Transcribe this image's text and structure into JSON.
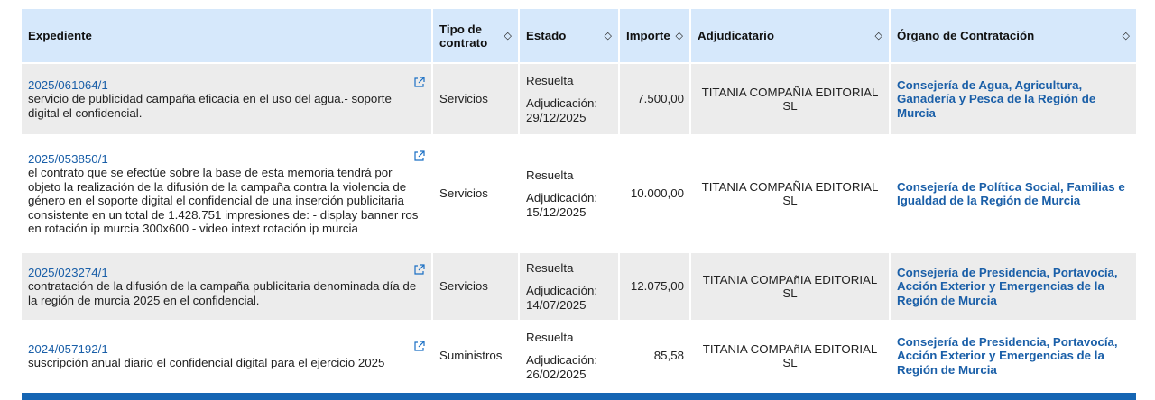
{
  "headers": {
    "expediente": "Expediente",
    "tipo": "Tipo de contrato",
    "estado": "Estado",
    "importe": "Importe",
    "adjudicatario": "Adjudicatario",
    "organo": "Órgano de Contratación",
    "sort_icon": "◇"
  },
  "rows": [
    {
      "expediente": "2025/061064/1",
      "descripcion": "servicio de publicidad campaña eficacia en el uso del agua.- soporte digital el confidencial.",
      "tipo": "Servicios",
      "estado": "Resuelta",
      "adjudicacion": "Adjudicación: 29/12/2025",
      "importe": "7.500,00",
      "adjudicatario": "TITANIA COMPAÑIA EDITORIAL SL",
      "organo": "Consejería de Agua, Agricultura, Ganadería y Pesca de la Región de Murcia"
    },
    {
      "expediente": "2025/053850/1",
      "descripcion": "el contrato que se efectúe sobre la base de esta memoria tendrá por objeto la realización de la difusión de la campaña contra la violencia de género en el soporte digital el confidencial de una inserción publicitaria consistente en un total de 1.428.751 impresiones de: - display banner ros en rotación ip murcia 300x600 - video intext rotación ip murcia",
      "tipo": "Servicios",
      "estado": "Resuelta",
      "adjudicacion": "Adjudicación: 15/12/2025",
      "importe": "10.000,00",
      "adjudicatario": "TITANIA COMPAÑIA EDITORIAL SL",
      "organo": "Consejería de Política Social, Familias e Igualdad de la Región de Murcia"
    },
    {
      "expediente": "2025/023274/1",
      "descripcion": "contratación de la difusión de la campaña publicitaria denominada día de la región de murcia 2025 en el confidencial.",
      "tipo": "Servicios",
      "estado": "Resuelta",
      "adjudicacion": "Adjudicación: 14/07/2025",
      "importe": "12.075,00",
      "adjudicatario": "TITANIA COMPAñIA EDITORIAL SL",
      "organo": "Consejería de Presidencia, Portavocía, Acción Exterior y Emergencias de la Región de Murcia"
    },
    {
      "expediente": "2024/057192/1",
      "descripcion": "suscripción anual diario el confidencial digital para el ejercicio 2025",
      "tipo": "Suministros",
      "estado": "Resuelta",
      "adjudicacion": "Adjudicación: 26/02/2025",
      "importe": "85,58",
      "adjudicatario": "TITANIA COMPAñIA EDITORIAL SL",
      "organo": "Consejería de Presidencia, Portavocía, Acción Exterior y Emergencias de la Región de Murcia"
    }
  ],
  "colors": {
    "header_bg": "#d6e8fb",
    "row_odd_bg": "#ececec",
    "link": "#1a5fa8",
    "footer_bar": "#1565b3"
  }
}
